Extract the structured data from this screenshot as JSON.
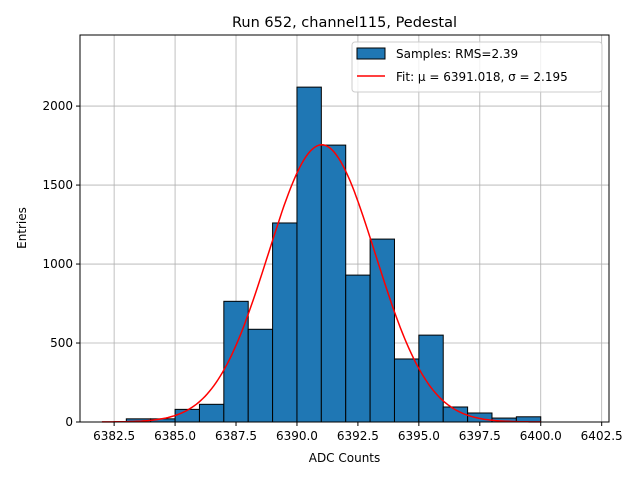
{
  "chart_data": {
    "type": "bar",
    "title": "Run 652, channel115, Pedestal",
    "xlabel": "ADC Counts",
    "ylabel": "Entries",
    "xlim": [
      6381.1,
      6402.8
    ],
    "ylim": [
      0,
      2450
    ],
    "xticks": [
      6382.5,
      6385.0,
      6387.5,
      6390.0,
      6392.5,
      6395.0,
      6397.5,
      6400.0,
      6402.5
    ],
    "xtick_labels": [
      "6382.5",
      "6385.0",
      "6387.5",
      "6390.0",
      "6392.5",
      "6395.0",
      "6397.5",
      "6400.0",
      "6402.5"
    ],
    "yticks": [
      0,
      500,
      1000,
      1500,
      2000
    ],
    "ytick_labels": [
      "0",
      "500",
      "1000",
      "1500",
      "2000"
    ],
    "grid": true,
    "bin_edges": [
      6383,
      6384,
      6385,
      6386,
      6387,
      6388,
      6389,
      6390,
      6391,
      6392,
      6393,
      6394,
      6395,
      6396,
      6397,
      6398,
      6399,
      6400
    ],
    "values": [
      20,
      20,
      80,
      112,
      764,
      587,
      1260,
      2120,
      1753,
      930,
      1158,
      399,
      550,
      95,
      57,
      25,
      33
    ],
    "fit": {
      "mu": 6391.018,
      "sigma": 2.195,
      "amplitude": 1755,
      "range": [
        6382,
        6400
      ]
    },
    "legend": {
      "placement": "top-right",
      "entries": [
        "Samples: RMS=2.39",
        "Fit: μ = 6391.018, σ = 2.195"
      ]
    },
    "colors": {
      "bar": "#1f77b4",
      "fit": "#ff0000",
      "grid": "#b0b0b0"
    }
  }
}
